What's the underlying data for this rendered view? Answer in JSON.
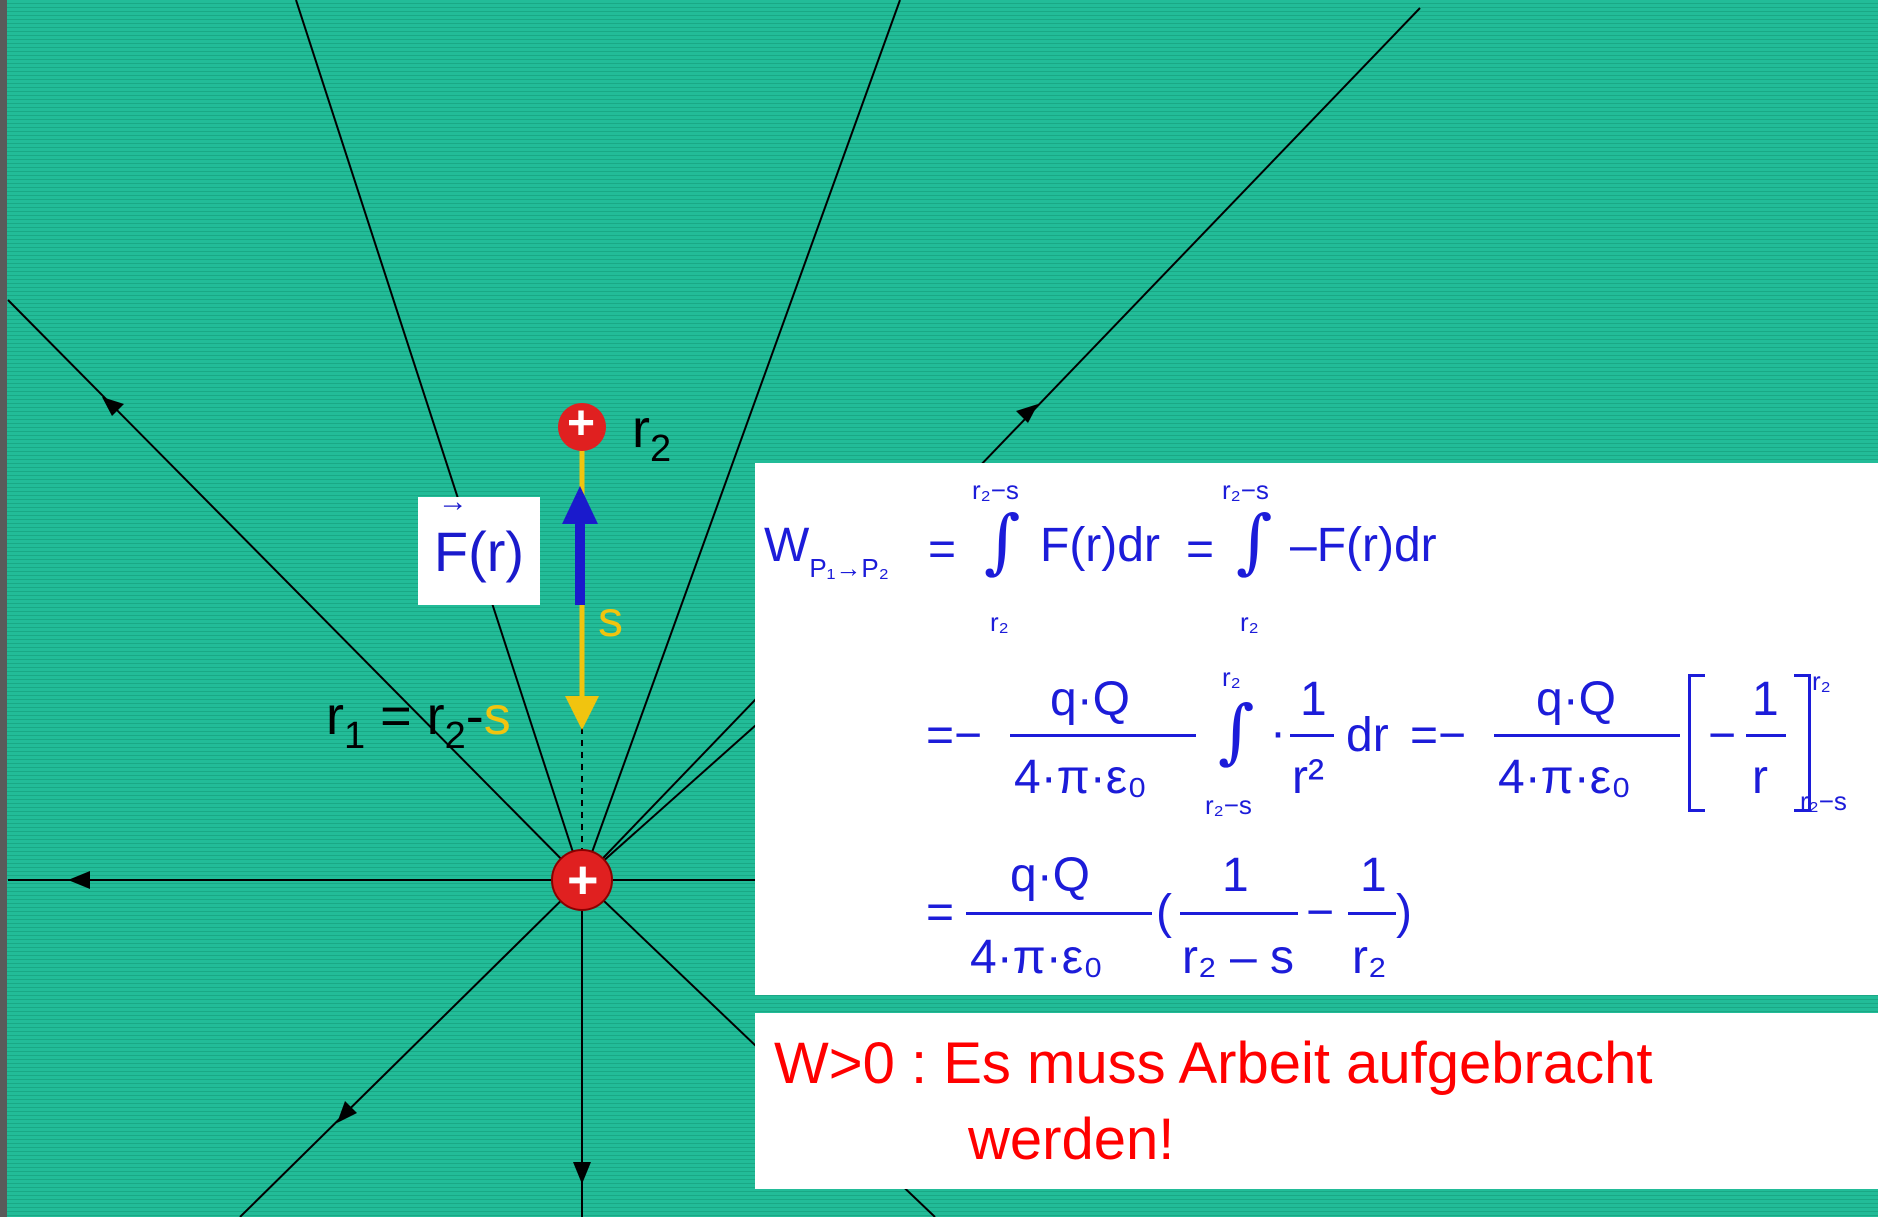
{
  "colors": {
    "background": "#1fb894",
    "field_line": "#000000",
    "charge_fill": "#e02020",
    "force_arrow": "#1a1acc",
    "displacement": "#f1c40f",
    "equation_text": "#1c1cd9",
    "statement_text": "#ff0000"
  },
  "labels": {
    "r2": "r",
    "r2_sub": "2",
    "r1_eq_prefix": "r",
    "r1_sub": "1",
    "r1_eq_mid": " = r",
    "r1_eq_sub2": "2",
    "r1_eq_dash": "-",
    "s_inline": "s",
    "s_side": "s",
    "force": "F(r)",
    "charge_symbol": "+"
  },
  "equations": {
    "line1": {
      "W": "W",
      "W_sub": "P₁→P₂",
      "eq1": "=",
      "int1_upper": "r₂−s",
      "int1_lower": "r₂",
      "int1_body": "F(r)dr",
      "eq2": "=",
      "int2_upper": "r₂−s",
      "int2_lower": "r₂",
      "int2_body": "–F(r)dr"
    },
    "line2": {
      "lead": "=−",
      "num": "q·Q",
      "den": "4·π·ε₀",
      "int_upper": "r₂",
      "int_lower": "r₂−s",
      "dot": "·",
      "frac_num": "1",
      "frac_den": "r²",
      "dr": "dr",
      "eq": "=−",
      "num2": "q·Q",
      "den2": "4·π·ε₀",
      "bracket_minus": "−",
      "bracket_num": "1",
      "bracket_den": "r",
      "limit_upper": "r₂",
      "limit_lower": "r₂−s"
    },
    "line3": {
      "lead": "=",
      "num": "q·Q",
      "den": "4·π·ε₀",
      "open": "(",
      "f1_num": "1",
      "f1_den": "r₂ – s",
      "minus": "−",
      "f2_num": "1",
      "f2_den": "r₂",
      "close": ")"
    }
  },
  "statement": {
    "line1": "W>0 : Es muss Arbeit aufgebracht",
    "line2": "werden!"
  }
}
